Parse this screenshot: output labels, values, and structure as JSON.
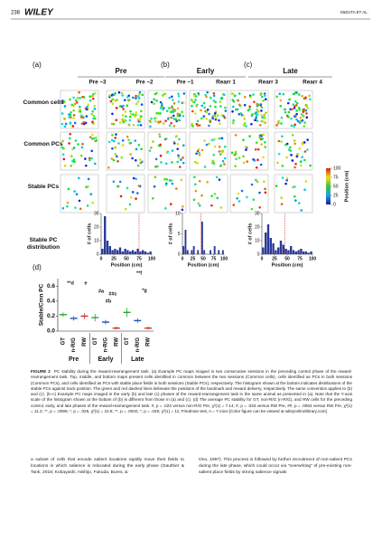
{
  "header": {
    "page": "238",
    "journal": "WILEY",
    "running_head": "MIZUTA ET AL."
  },
  "figure": {
    "panels": [
      {
        "label": "(a)",
        "title": "Pre",
        "sessions": [
          "Pre −3",
          "Pre −2"
        ]
      },
      {
        "label": "(b)",
        "title": "Early",
        "sessions": [
          "Pre −1",
          "Rearr 1"
        ]
      },
      {
        "label": "(c)",
        "title": "Late",
        "sessions": [
          "Rearr 3",
          "Rearr 4"
        ]
      }
    ],
    "row_labels": [
      "Common cells",
      "Common PCs",
      "Stable PCs",
      "Stable PC distribution"
    ],
    "colorbar": {
      "label": "Position (cm)",
      "ticks": [
        0,
        25,
        50,
        75,
        100
      ]
    },
    "histograms": [
      {
        "type": "histogram",
        "ylabel": "# of cells",
        "xlabel": "Position (cm)",
        "bins": [
          0,
          5,
          10,
          15,
          20,
          25,
          30,
          35,
          40,
          45,
          50,
          55,
          60,
          65,
          70,
          75,
          80,
          85,
          90,
          95,
          100
        ],
        "values": [
          4,
          28,
          10,
          6,
          3,
          4,
          3,
          5,
          2,
          4,
          3,
          2,
          3,
          2,
          4,
          2,
          3,
          2,
          1,
          2
        ],
        "ylim": [
          0,
          30
        ],
        "yticks": [
          0,
          10,
          20,
          30
        ],
        "xlim": [
          0,
          100
        ],
        "xticks": [
          0,
          25,
          50,
          75,
          100
        ],
        "reward_line": 75
      },
      {
        "type": "histogram",
        "ylabel": "# of cells",
        "xlabel": "Position (cm)",
        "bins": [
          0,
          5,
          10,
          15,
          20,
          25,
          30,
          35,
          40,
          45,
          50,
          55,
          60,
          65,
          70,
          75,
          80,
          85,
          90,
          95,
          100
        ],
        "values": [
          2,
          6,
          1,
          0,
          1,
          2,
          0,
          1,
          0,
          8,
          1,
          0,
          0,
          1,
          0,
          2,
          0,
          1,
          0,
          1
        ],
        "ylim": [
          0,
          10
        ],
        "yticks": [
          0,
          5,
          10
        ],
        "xlim": [
          0,
          100
        ],
        "xticks": [
          0,
          25,
          50,
          75,
          100
        ],
        "reward_line": 45
      },
      {
        "type": "histogram",
        "ylabel": "# of cells",
        "xlabel": "Position (cm)",
        "bins": [
          0,
          5,
          10,
          15,
          20,
          25,
          30,
          35,
          40,
          45,
          50,
          55,
          60,
          65,
          70,
          75,
          80,
          85,
          90,
          95,
          100
        ],
        "values": [
          5,
          16,
          22,
          12,
          8,
          3,
          5,
          10,
          7,
          4,
          3,
          6,
          3,
          2,
          3,
          4,
          2,
          2,
          1,
          2
        ],
        "ylim": [
          0,
          30
        ],
        "yticks": [
          0,
          10,
          20,
          30
        ],
        "xlim": [
          0,
          100
        ],
        "xticks": [
          0,
          25,
          50,
          75,
          100
        ],
        "reward_line": 45
      }
    ],
    "panel_d": {
      "type": "dot",
      "label": "(d)",
      "ylabel": "Stable/Cmn PC",
      "ylim": [
        0,
        0.7
      ],
      "yticks": [
        {
          "value": 0,
          "label": "0.0"
        },
        0.2,
        0.4,
        0.6
      ],
      "groups": [
        "Pre",
        "Early",
        "Late"
      ],
      "series": [
        {
          "name": "GT",
          "color": "#2ca02c",
          "values": [
            0.22,
            0.18,
            0.25
          ],
          "errors": [
            0.03,
            0.05,
            0.06
          ]
        },
        {
          "name": "n-R/G",
          "color": "#1f4fbf",
          "values": [
            0.17,
            0.12,
            0.14
          ],
          "errors": [
            0.03,
            0.03,
            0.03
          ]
        },
        {
          "name": "RW",
          "color": "#d62728",
          "values": [
            0.2,
            0.04,
            0.04
          ],
          "errors": [
            0.04,
            0.02,
            0.02
          ]
        }
      ],
      "annotations": [
        "**d",
        "e",
        "#a",
        "##c",
        "#b",
        "**f",
        "*g"
      ]
    }
  },
  "caption": {
    "label": "FIGURE 2",
    "text": "PC stability during the reward-rearrangement task. (a) Example PC maps imaged in two consecutive sessions in the preceding control phase of the reward-rearrangement task. Top, middle, and bottom maps present cells identified in common between the two sessions (Common cells), cells identified as PCs in both sessions (Common PCs), and cells identified as PCs with stable place fields in both sessions (Stable PCs), respectively. The histogram shown at the bottom indicates distributions of the stable PCs against track position. The green and red dashed lines delineate the positions of the landmark and reward delivery, respectively. The same convention applies to (b) and (c). (b–c) Example PC maps imaged in the early (b) and late (c) phases of the reward-rearrangement task in the same animal as presented in (a). Note that the Y-axis scale of the histogram shown at the bottom of (b) is different from those in (a) and (c). (d) The average PC stability for GT, non-R/G (n-R/G), and RW cells for the preceding control, early, and late phases of the reward-rearrangement task. #, p = .023 versus non-R/G Pre, χ²(1) = 7.14; #, p = .033 versus RW Pre, ##, p = .0063 versus RW Pre, χ²(1) = 11.2; **, p = .0099, *, p = .025, χ²(1) = 10.6; **, p = .0040, *, p = .049, χ²(1) = 11; Friedman test, n = 7 mice [Color figure can be viewed at wileyonlinelibrary.com]"
  },
  "body": {
    "left": "a subset of cells that encode salient locations rapidly move their fields to locations in which salience is relocated during the early phase (Gauthier & Tank, 2018; Kobayashi, Nishijo, Fukuda, Bures, &",
    "right": "Ono, 1997). This process is followed by further recruitment of non-salient PCs during the late phase, which could occur via “overwriting” of pre-existing non-salient place fields by strong salience signals"
  }
}
